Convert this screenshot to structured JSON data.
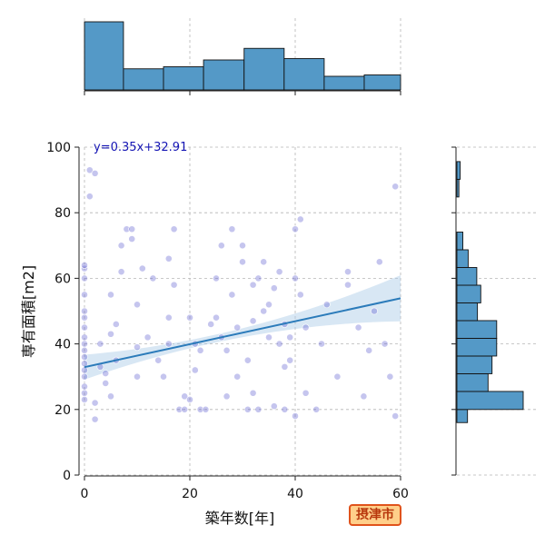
{
  "chart_data": {
    "type": "scatter",
    "xlabel": "築年数[年]",
    "ylabel": "専有面積[m2]",
    "xlim": [
      0,
      60
    ],
    "ylim": [
      0,
      100
    ],
    "x_ticks": [
      0,
      20,
      40,
      60
    ],
    "y_ticks": [
      0,
      20,
      40,
      60,
      80,
      100
    ],
    "grid": true,
    "equation_label": "y=0.35x+32.91",
    "regression": {
      "slope": 0.35,
      "intercept": 32.91
    },
    "colors": {
      "point": "#5a5acd",
      "line": "#2b7bba",
      "band": "#a9c9e6",
      "bar": "#5499c7",
      "equation": "#1414b4"
    },
    "top_histogram": {
      "bins": [
        [
          0,
          7.4
        ],
        [
          7.4,
          15
        ],
        [
          15,
          22.6
        ],
        [
          22.6,
          30.3
        ],
        [
          30.3,
          37.9
        ],
        [
          37.9,
          45.5
        ],
        [
          45.5,
          53.1
        ],
        [
          53.1,
          60
        ]
      ],
      "relative_heights": [
        1.0,
        0.31,
        0.34,
        0.44,
        0.61,
        0.46,
        0.2,
        0.22
      ]
    },
    "right_histogram": {
      "bins": [
        [
          16,
          20
        ],
        [
          20,
          25.5
        ],
        [
          25.5,
          30.9
        ],
        [
          30.9,
          36.3
        ],
        [
          36.3,
          41.7
        ],
        [
          41.7,
          47.1
        ],
        [
          47.1,
          52.5
        ],
        [
          52.5,
          57.9
        ],
        [
          57.9,
          63.3
        ],
        [
          63.3,
          68.7
        ],
        [
          68.7,
          74.1
        ],
        [
          74.1,
          79.4
        ],
        [
          79.4,
          84.8
        ],
        [
          84.8,
          90.2
        ],
        [
          90.2,
          95.6
        ]
      ],
      "relative_heights": [
        0.16,
        1.0,
        0.47,
        0.53,
        0.6,
        0.6,
        0.31,
        0.36,
        0.3,
        0.17,
        0.09,
        0.0,
        0.0,
        0.03,
        0.05
      ]
    },
    "points": [
      [
        0,
        23
      ],
      [
        0,
        25
      ],
      [
        0,
        27
      ],
      [
        0,
        30
      ],
      [
        0,
        32
      ],
      [
        0,
        34
      ],
      [
        0,
        36
      ],
      [
        0,
        38
      ],
      [
        0,
        40
      ],
      [
        0,
        42
      ],
      [
        0,
        45
      ],
      [
        0,
        48
      ],
      [
        0,
        50
      ],
      [
        0,
        55
      ],
      [
        0,
        60
      ],
      [
        0,
        63
      ],
      [
        0,
        64
      ],
      [
        1,
        93
      ],
      [
        2,
        92
      ],
      [
        1,
        85
      ],
      [
        2,
        17
      ],
      [
        2,
        22
      ],
      [
        3,
        40
      ],
      [
        3,
        33
      ],
      [
        4,
        28
      ],
      [
        4,
        31
      ],
      [
        5,
        24
      ],
      [
        5,
        43
      ],
      [
        5,
        55
      ],
      [
        6,
        35
      ],
      [
        6,
        46
      ],
      [
        7,
        62
      ],
      [
        7,
        70
      ],
      [
        8,
        75
      ],
      [
        9,
        72
      ],
      [
        9,
        75
      ],
      [
        10,
        30
      ],
      [
        10,
        39
      ],
      [
        10,
        52
      ],
      [
        11,
        63
      ],
      [
        12,
        42
      ],
      [
        13,
        60
      ],
      [
        14,
        35
      ],
      [
        15,
        30
      ],
      [
        16,
        40
      ],
      [
        16,
        48
      ],
      [
        16,
        66
      ],
      [
        17,
        58
      ],
      [
        17,
        75
      ],
      [
        18,
        20
      ],
      [
        19,
        20
      ],
      [
        19,
        24
      ],
      [
        20,
        23
      ],
      [
        20,
        48
      ],
      [
        21,
        32
      ],
      [
        21,
        40
      ],
      [
        22,
        20
      ],
      [
        22,
        38
      ],
      [
        23,
        20
      ],
      [
        24,
        46
      ],
      [
        25,
        48
      ],
      [
        25,
        60
      ],
      [
        26,
        42
      ],
      [
        26,
        70
      ],
      [
        27,
        24
      ],
      [
        27,
        38
      ],
      [
        28,
        55
      ],
      [
        28,
        75
      ],
      [
        29,
        30
      ],
      [
        29,
        45
      ],
      [
        30,
        65
      ],
      [
        30,
        70
      ],
      [
        31,
        20
      ],
      [
        31,
        35
      ],
      [
        32,
        25
      ],
      [
        32,
        47
      ],
      [
        32,
        58
      ],
      [
        33,
        20
      ],
      [
        33,
        60
      ],
      [
        34,
        50
      ],
      [
        34,
        65
      ],
      [
        35,
        42
      ],
      [
        35,
        52
      ],
      [
        36,
        21
      ],
      [
        36,
        57
      ],
      [
        37,
        40
      ],
      [
        37,
        62
      ],
      [
        38,
        20
      ],
      [
        38,
        33
      ],
      [
        38,
        46
      ],
      [
        39,
        35
      ],
      [
        39,
        42
      ],
      [
        40,
        18
      ],
      [
        40,
        60
      ],
      [
        40,
        75
      ],
      [
        41,
        55
      ],
      [
        41,
        78
      ],
      [
        42,
        25
      ],
      [
        42,
        45
      ],
      [
        44,
        20
      ],
      [
        45,
        40
      ],
      [
        46,
        52
      ],
      [
        48,
        30
      ],
      [
        50,
        58
      ],
      [
        50,
        62
      ],
      [
        52,
        45
      ],
      [
        53,
        24
      ],
      [
        54,
        38
      ],
      [
        55,
        50
      ],
      [
        56,
        65
      ],
      [
        57,
        40
      ],
      [
        58,
        30
      ],
      [
        59,
        88
      ],
      [
        59,
        18
      ]
    ]
  },
  "badge": {
    "city_label": "摂津市"
  }
}
